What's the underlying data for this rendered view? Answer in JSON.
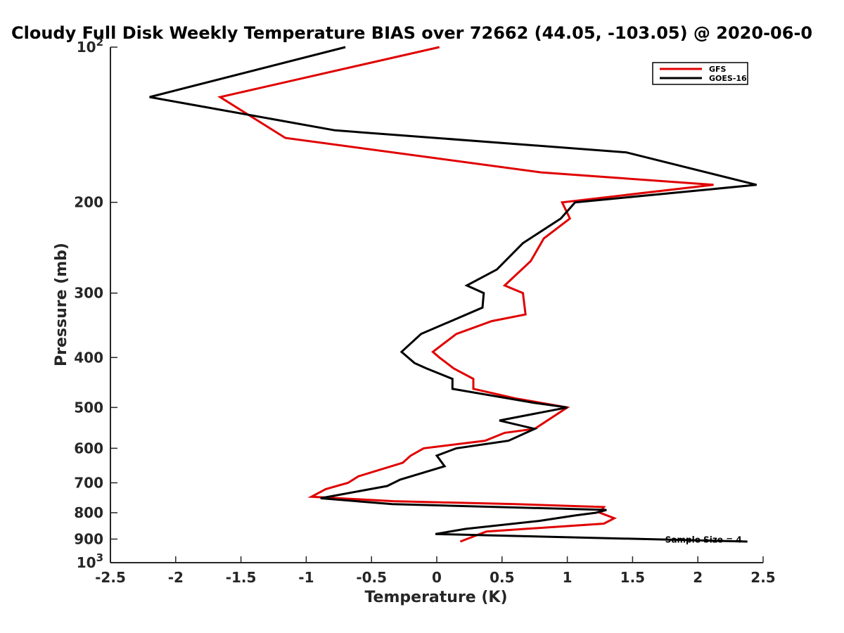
{
  "chart_data": {
    "type": "line",
    "title": "Cloudy Full Disk Weekly Temperature BIAS over 72662 (44.05, -103.05) @ 2020-06-0",
    "xlabel": "Temperature (K)",
    "ylabel": "Pressure (mb)",
    "xlim": [
      -2.5,
      2.5
    ],
    "ylim": [
      100,
      1000
    ],
    "yscale": "log",
    "y_reversed": true,
    "xticks": [
      "-2.5",
      "-2",
      "-1.5",
      "-1",
      "-0.5",
      "0",
      "0.5",
      "1",
      "1.5",
      "2",
      "2.5"
    ],
    "xtick_values": [
      -2.5,
      -2,
      -1.5,
      -1,
      -0.5,
      0,
      0.5,
      1,
      1.5,
      2,
      2.5
    ],
    "yticks": [
      {
        "value": 100,
        "label": "10",
        "sup": "2"
      },
      {
        "value": 200,
        "label": "200",
        "sup": ""
      },
      {
        "value": 300,
        "label": "300",
        "sup": ""
      },
      {
        "value": 400,
        "label": "400",
        "sup": ""
      },
      {
        "value": 500,
        "label": "500",
        "sup": ""
      },
      {
        "value": 600,
        "label": "600",
        "sup": ""
      },
      {
        "value": 700,
        "label": "700",
        "sup": ""
      },
      {
        "value": 800,
        "label": "800",
        "sup": ""
      },
      {
        "value": 900,
        "label": "900",
        "sup": ""
      },
      {
        "value": 1000,
        "label": "10",
        "sup": "3"
      }
    ],
    "grid": false,
    "legend_position": "top-right",
    "series": [
      {
        "name": "GFS",
        "color": "#e00000",
        "points": [
          [
            0.02,
            100
          ],
          [
            -1.66,
            125
          ],
          [
            -1.16,
            150
          ],
          [
            0.8,
            175
          ],
          [
            2.12,
            185
          ],
          [
            0.96,
            200
          ],
          [
            1.02,
            215
          ],
          [
            0.82,
            235
          ],
          [
            0.72,
            260
          ],
          [
            0.52,
            290
          ],
          [
            0.66,
            300
          ],
          [
            0.68,
            330
          ],
          [
            0.42,
            340
          ],
          [
            0.15,
            360
          ],
          [
            -0.03,
            390
          ],
          [
            0.02,
            400
          ],
          [
            0.13,
            420
          ],
          [
            0.28,
            440
          ],
          [
            0.28,
            460
          ],
          [
            0.6,
            480
          ],
          [
            1.0,
            500
          ],
          [
            0.75,
            550
          ],
          [
            0.52,
            560
          ],
          [
            0.37,
            580
          ],
          [
            -0.1,
            600
          ],
          [
            -0.2,
            620
          ],
          [
            -0.26,
            640
          ],
          [
            -0.6,
            680
          ],
          [
            -0.68,
            700
          ],
          [
            -0.85,
            720
          ],
          [
            -0.96,
            745
          ],
          [
            -0.33,
            760
          ],
          [
            0.6,
            770
          ],
          [
            1.28,
            780
          ],
          [
            1.25,
            800
          ],
          [
            1.36,
            820
          ],
          [
            1.28,
            840
          ],
          [
            0.38,
            870
          ],
          [
            0.18,
            910
          ]
        ]
      },
      {
        "name": "GOES-16",
        "color": "#000000",
        "points": [
          [
            -0.7,
            100
          ],
          [
            -2.2,
            125
          ],
          [
            -0.78,
            145
          ],
          [
            1.45,
            160
          ],
          [
            2.45,
            185
          ],
          [
            1.06,
            200
          ],
          [
            0.95,
            215
          ],
          [
            0.66,
            240
          ],
          [
            0.46,
            270
          ],
          [
            0.23,
            290
          ],
          [
            0.36,
            300
          ],
          [
            0.35,
            320
          ],
          [
            -0.12,
            360
          ],
          [
            -0.27,
            390
          ],
          [
            -0.17,
            410
          ],
          [
            -0.08,
            420
          ],
          [
            0.12,
            440
          ],
          [
            0.12,
            460
          ],
          [
            0.75,
            490
          ],
          [
            1.0,
            500
          ],
          [
            0.48,
            530
          ],
          [
            0.75,
            550
          ],
          [
            0.55,
            580
          ],
          [
            0.15,
            600
          ],
          [
            0.0,
            620
          ],
          [
            0.06,
            650
          ],
          [
            -0.28,
            690
          ],
          [
            -0.38,
            710
          ],
          [
            -0.89,
            750
          ],
          [
            -0.34,
            770
          ],
          [
            1.3,
            790
          ],
          [
            1.22,
            800
          ],
          [
            1.06,
            810
          ],
          [
            0.78,
            830
          ],
          [
            0.22,
            860
          ],
          [
            -0.01,
            880
          ],
          [
            2.38,
            910
          ]
        ]
      }
    ],
    "annotations": [
      {
        "text": "Sample Size = 4",
        "x": 1.75,
        "y": 900
      }
    ]
  }
}
